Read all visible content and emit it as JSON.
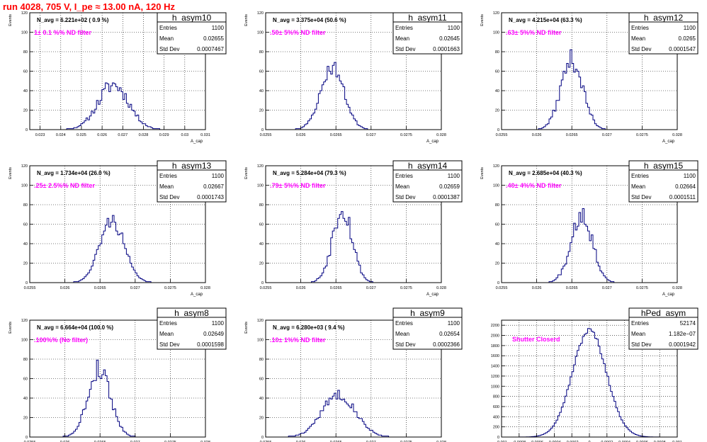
{
  "run_title": "run 4028,   705 V, I_pe ≈ 13.00 nA, 120 Hz",
  "colors": {
    "hist_line": "#000080",
    "annotation": "#ff00ff",
    "title": "#ff0000",
    "grid": "#000000"
  },
  "stat_labels": {
    "entries": "Entries",
    "mean": "Mean",
    "std": "Std Dev"
  },
  "chart_data": [
    {
      "type": "histogram",
      "name": "h_asym10",
      "navg": "N_avg = 6.221e+02 ( 0.9 %)",
      "note": "1± 0.1 %% ND filter",
      "stats": {
        "entries": "1100",
        "mean": "0.02655",
        "std": "0.0007467"
      },
      "ylabel": "Events",
      "xlabel": "A_cap",
      "xlim": [
        0.0225,
        0.031
      ],
      "ylim": [
        0,
        120
      ],
      "xticks": [
        0.023,
        0.024,
        0.025,
        0.026,
        0.027,
        0.028,
        0.029,
        0.03,
        0.031
      ],
      "xtick_labels": [
        "0.023",
        "0.024",
        "0.025",
        "0.026",
        "0.027",
        "0.028",
        "0.029",
        "0.03",
        "0.031"
      ],
      "yticks": [
        0,
        20,
        40,
        60,
        80,
        100,
        120
      ],
      "mean": 0.02655,
      "sigma": 0.00074,
      "peak": 46,
      "nbins": 100,
      "noise": 0.18,
      "seed": 11
    },
    {
      "type": "histogram",
      "name": "h_asym11",
      "navg": "N_avg = 3.375e+04 (50.6 %)",
      "note": ".50± 5%% ND filter",
      "stats": {
        "entries": "1100",
        "mean": "0.02645",
        "std": "0.0001663"
      },
      "ylabel": "Events",
      "xlabel": "A_cap",
      "xlim": [
        0.0255,
        0.028
      ],
      "ylim": [
        0,
        120
      ],
      "xticks": [
        0.0255,
        0.026,
        0.0265,
        0.027,
        0.0275,
        0.028
      ],
      "xtick_labels": [
        "0.0255",
        "0.026",
        "0.0265",
        "0.027",
        "0.0275",
        "0.028"
      ],
      "yticks": [
        0,
        20,
        40,
        60,
        80,
        100,
        120
      ],
      "mean": 0.02645,
      "sigma": 0.000166,
      "peak": 64,
      "nbins": 100,
      "noise": 0.12,
      "seed": 23
    },
    {
      "type": "histogram",
      "name": "h_asym12",
      "navg": "N_avg = 4.215e+04 (63.3 %)",
      "note": ".63± 5%% ND filter",
      "stats": {
        "entries": "1100",
        "mean": "0.0265",
        "std": "0.0001547"
      },
      "ylabel": "Events",
      "xlabel": "A_cap",
      "xlim": [
        0.0255,
        0.028
      ],
      "ylim": [
        0,
        120
      ],
      "xticks": [
        0.0255,
        0.026,
        0.0265,
        0.027,
        0.0275,
        0.028
      ],
      "xtick_labels": [
        "0.0255",
        "0.026",
        "0.0265",
        "0.027",
        "0.0275",
        "0.028"
      ],
      "yticks": [
        0,
        20,
        40,
        60,
        80,
        100,
        120
      ],
      "mean": 0.0265,
      "sigma": 0.000155,
      "peak": 72,
      "nbins": 100,
      "noise": 0.15,
      "seed": 37
    },
    {
      "type": "histogram",
      "name": "h_asym13",
      "navg": "N_avg = 1.734e+04 (26.0 %)",
      "note": ".25± 2.5%% ND filter",
      "stats": {
        "entries": "1100",
        "mean": "0.02667",
        "std": "0.0001743"
      },
      "ylabel": "Events",
      "xlabel": "A_cap",
      "xlim": [
        0.0255,
        0.028
      ],
      "ylim": [
        0,
        120
      ],
      "xticks": [
        0.0255,
        0.026,
        0.0265,
        0.027,
        0.0275,
        0.028
      ],
      "xtick_labels": [
        "0.0255",
        "0.026",
        "0.0265",
        "0.027",
        "0.0275",
        "0.028"
      ],
      "yticks": [
        0,
        20,
        40,
        60,
        80,
        100,
        120
      ],
      "mean": 0.02667,
      "sigma": 0.000174,
      "peak": 64,
      "nbins": 100,
      "noise": 0.12,
      "seed": 41
    },
    {
      "type": "histogram",
      "name": "h_asym14",
      "navg": "N_avg = 5.284e+04 (79.3 %)",
      "note": ".79± 5%% ND filter",
      "stats": {
        "entries": "1100",
        "mean": "0.02659",
        "std": "0.0001387"
      },
      "ylabel": "Events",
      "xlabel": "A_cap",
      "xlim": [
        0.0255,
        0.028
      ],
      "ylim": [
        0,
        120
      ],
      "xticks": [
        0.0255,
        0.026,
        0.0265,
        0.027,
        0.0275,
        0.028
      ],
      "xtick_labels": [
        "0.0255",
        "0.026",
        "0.0265",
        "0.027",
        "0.0275",
        "0.028"
      ],
      "yticks": [
        0,
        20,
        40,
        60,
        80,
        100,
        120
      ],
      "mean": 0.02659,
      "sigma": 0.000139,
      "peak": 78,
      "nbins": 100,
      "noise": 0.18,
      "seed": 53
    },
    {
      "type": "histogram",
      "name": "h_asym15",
      "navg": "N_avg = 2.685e+04 (40.3 %)",
      "note": ".40± 4%% ND filter",
      "stats": {
        "entries": "1100",
        "mean": "0.02664",
        "std": "0.0001511"
      },
      "ylabel": "Events",
      "xlabel": "A_cap",
      "xlim": [
        0.0255,
        0.028
      ],
      "ylim": [
        0,
        120
      ],
      "xticks": [
        0.0255,
        0.026,
        0.0265,
        0.027,
        0.0275,
        0.028
      ],
      "xtick_labels": [
        "0.0255",
        "0.026",
        "0.0265",
        "0.027",
        "0.0275",
        "0.028"
      ],
      "yticks": [
        0,
        20,
        40,
        60,
        80,
        100,
        120
      ],
      "mean": 0.02664,
      "sigma": 0.000151,
      "peak": 72,
      "nbins": 100,
      "noise": 0.18,
      "seed": 67
    },
    {
      "type": "histogram",
      "name": "h_asym8",
      "navg": "N_avg = 6.664e+04 (100.0 %)",
      "note": ".100%% (No filter)",
      "stats": {
        "entries": "1100",
        "mean": "0.02649",
        "std": "0.0001598"
      },
      "ylabel": "Events",
      "xlabel": "A_cap",
      "xlim": [
        0.0255,
        0.028
      ],
      "ylim": [
        0,
        120
      ],
      "xticks": [
        0.0255,
        0.026,
        0.0265,
        0.027,
        0.0275,
        0.028
      ],
      "xtick_labels": [
        "0.0255",
        "0.026",
        "0.0265",
        "0.027",
        "0.0275",
        "0.028"
      ],
      "yticks": [
        0,
        20,
        40,
        60,
        80,
        100,
        120
      ],
      "mean": 0.02649,
      "sigma": 0.00016,
      "peak": 70,
      "nbins": 100,
      "noise": 0.16,
      "seed": 79
    },
    {
      "type": "histogram",
      "name": "h_asym9",
      "navg": "N_avg = 6.280e+03 ( 9.4 %)",
      "note": ".10± 1%% ND filter",
      "stats": {
        "entries": "1100",
        "mean": "0.02654",
        "std": "0.0002366"
      },
      "ylabel": "Events",
      "xlabel": "A_cap",
      "xlim": [
        0.0255,
        0.028
      ],
      "ylim": [
        0,
        120
      ],
      "xticks": [
        0.0255,
        0.026,
        0.0265,
        0.027,
        0.0275,
        0.028
      ],
      "xtick_labels": [
        "0.0255",
        "0.026",
        "0.0265",
        "0.027",
        "0.0275",
        "0.028"
      ],
      "yticks": [
        0,
        20,
        40,
        60,
        80,
        100,
        120
      ],
      "mean": 0.02654,
      "sigma": 0.000237,
      "peak": 44,
      "nbins": 100,
      "noise": 0.12,
      "seed": 83
    },
    {
      "type": "histogram",
      "name": "hPed_asym",
      "navg": "",
      "note": "Shutter Closerd",
      "stats": {
        "entries": "52174",
        "mean": "1.182e−07",
        "std": "0.0001942"
      },
      "ylabel": "",
      "xlabel": "",
      "xlim": [
        -0.001,
        0.001
      ],
      "ylim": [
        0,
        2300
      ],
      "xticks": [
        -0.001,
        -0.0008,
        -0.0006,
        -0.0004,
        -0.0002,
        0,
        0.0002,
        0.0004,
        0.0006,
        0.0008,
        0.001
      ],
      "xtick_labels": [
        "-0.001",
        "-0.0008",
        "-0.0006",
        "-0.0004",
        "-0.0002",
        "0",
        "0.0002",
        "0.0004",
        "0.0006",
        "0.0008",
        "0.001"
      ],
      "yticks": [
        0,
        200,
        400,
        600,
        800,
        1000,
        1200,
        1400,
        1600,
        1800,
        2000,
        2200
      ],
      "mean": 0.0,
      "sigma": 0.000194,
      "peak": 2100,
      "nbins": 100,
      "noise": 0.025,
      "seed": 97
    }
  ]
}
